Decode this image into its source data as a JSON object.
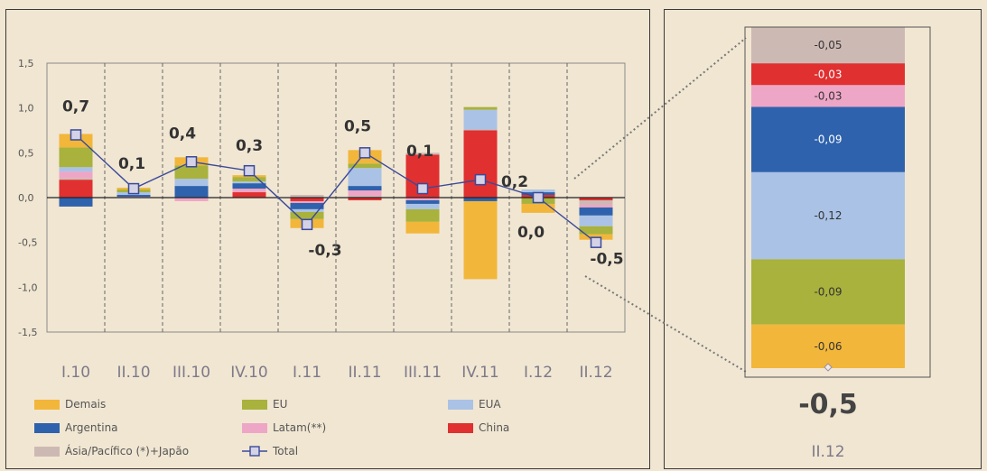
{
  "chart_data": [
    {
      "type": "bar",
      "subtype": "stacked-bar-with-line",
      "categories": [
        "I.10",
        "II.10",
        "III.10",
        "IV.10",
        "I.11",
        "II.11",
        "III.11",
        "IV.11",
        "I.12",
        "II.12"
      ],
      "ylim": [
        -1.5,
        1.5
      ],
      "yticks": [
        "1,5",
        "1,0",
        "0,5",
        "0,0",
        "-0,5",
        "-1,0",
        "-1,5"
      ],
      "grid": "vertical-dashed",
      "legend": "bottom",
      "series": [
        {
          "name": "China",
          "color": "#e03030",
          "values": [
            0.2,
            0.0,
            0.0,
            0.06,
            -0.04,
            -0.03,
            0.48,
            0.75,
            0.03,
            -0.03
          ]
        },
        {
          "name": "Ásia/Pacífico (*)+Japão",
          "color": "#cdb9b4",
          "values": [
            0.02,
            0.0,
            0.0,
            0.0,
            0.03,
            0.02,
            0.02,
            0.01,
            0.0,
            -0.05
          ]
        },
        {
          "name": "Latam(**)",
          "color": "#eea6c6",
          "values": [
            0.07,
            0.01,
            -0.04,
            0.04,
            -0.02,
            0.06,
            -0.03,
            0.0,
            0.0,
            -0.03
          ]
        },
        {
          "name": "Argentina",
          "color": "#2e62ad",
          "values": [
            -0.1,
            0.02,
            0.13,
            0.06,
            -0.07,
            0.05,
            -0.04,
            -0.04,
            0.03,
            -0.09
          ]
        },
        {
          "name": "EUA",
          "color": "#aac2e6",
          "values": [
            0.05,
            0.03,
            0.08,
            0.02,
            -0.03,
            0.2,
            -0.06,
            0.22,
            0.03,
            -0.12
          ]
        },
        {
          "name": "EU",
          "color": "#a8b23c",
          "values": [
            0.22,
            0.03,
            0.15,
            0.05,
            -0.08,
            0.05,
            -0.14,
            0.03,
            -0.07,
            -0.09
          ]
        },
        {
          "name": "Demais",
          "color": "#f2b63a",
          "values": [
            0.15,
            0.02,
            0.09,
            0.02,
            -0.1,
            0.15,
            -0.13,
            -0.87,
            -0.1,
            -0.06
          ]
        }
      ],
      "line": {
        "name": "Total",
        "color": "#3a4a9a",
        "values": [
          0.7,
          0.1,
          0.4,
          0.3,
          -0.3,
          0.5,
          0.1,
          0.2,
          0.0,
          -0.5
        ]
      },
      "data_labels": [
        "0,7",
        "0,1",
        "0,4",
        "0,3",
        "-0,3",
        "0,5",
        "0,1",
        "0,2",
        "0,0",
        "-0,5"
      ],
      "legend_entries": [
        {
          "label": "Demais",
          "color": "#f2b63a",
          "kind": "box"
        },
        {
          "label": "EU",
          "color": "#a8b23c",
          "kind": "box"
        },
        {
          "label": "EUA",
          "color": "#aac2e6",
          "kind": "box"
        },
        {
          "label": "Argentina",
          "color": "#2e62ad",
          "kind": "box"
        },
        {
          "label": "Latam(**)",
          "color": "#eea6c6",
          "kind": "box"
        },
        {
          "label": "China",
          "color": "#e03030",
          "kind": "box"
        },
        {
          "label": "Ásia/Pacífico (*)+Japão",
          "color": "#cdb9b4",
          "kind": "box"
        },
        {
          "label": "Total",
          "color": "#3a4a9a",
          "kind": "line"
        }
      ]
    },
    {
      "type": "bar",
      "subtype": "single-stacked-bar-detail",
      "category": "II.12",
      "total_label": "-0,5",
      "segments": [
        {
          "series": "Ásia/Pacífico (*)+Japão",
          "value": -0.05,
          "label": "-0,05",
          "color": "#cdb9b4"
        },
        {
          "series": "China",
          "value": -0.03,
          "label": "-0,03",
          "color": "#e03030"
        },
        {
          "series": "Latam(**)",
          "value": -0.03,
          "label": "-0,03",
          "color": "#eea6c6"
        },
        {
          "series": "Argentina",
          "value": -0.09,
          "label": "-0,09",
          "color": "#2e62ad"
        },
        {
          "series": "EUA",
          "value": -0.12,
          "label": "-0,12",
          "color": "#aac2e6"
        },
        {
          "series": "EU",
          "value": -0.09,
          "label": "-0,09",
          "color": "#a8b23c"
        },
        {
          "series": "Demais",
          "value": -0.06,
          "label": "-0,06",
          "color": "#f2b63a"
        }
      ]
    }
  ]
}
